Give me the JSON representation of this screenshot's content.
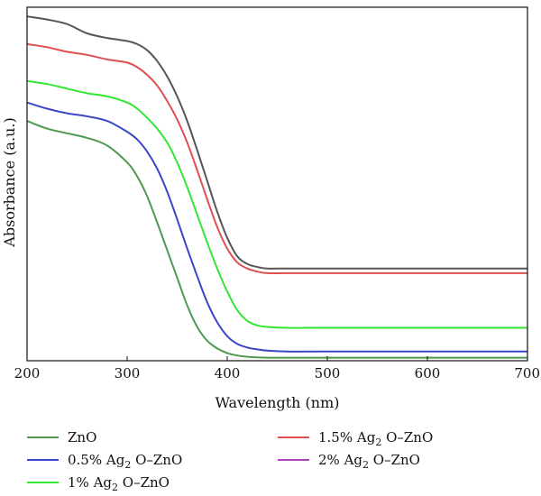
{
  "chart_data": {
    "type": "line",
    "xlabel": "Wavelength (nm)",
    "ylabel": "Absorbance (a.u.)",
    "xlim": [
      200,
      700
    ],
    "xticks": [
      "200",
      "300",
      "400",
      "500",
      "600",
      "700"
    ],
    "yticks": [],
    "grid": false,
    "legend_position": "bottom",
    "x": [
      200,
      220,
      240,
      260,
      280,
      300,
      310,
      320,
      330,
      340,
      350,
      360,
      370,
      380,
      390,
      400,
      410,
      420,
      430,
      440,
      460,
      500,
      600,
      700
    ],
    "series": [
      {
        "name": "ZnO",
        "legend_parts": [
          "ZnO"
        ],
        "color": "#4e9a4e",
        "values": [
          0.77,
          0.745,
          0.73,
          0.715,
          0.69,
          0.635,
          0.59,
          0.525,
          0.44,
          0.35,
          0.26,
          0.17,
          0.1,
          0.055,
          0.03,
          0.015,
          0.007,
          0.003,
          0.001,
          0,
          0,
          0,
          0,
          0
        ]
      },
      {
        "name": "0.5% Ag2 O-ZnO",
        "legend_parts": [
          "0.5% Ag",
          "2",
          " O–ZnO"
        ],
        "color": "#3b46c8",
        "values": [
          0.83,
          0.81,
          0.795,
          0.785,
          0.77,
          0.735,
          0.71,
          0.67,
          0.615,
          0.54,
          0.45,
          0.355,
          0.265,
          0.18,
          0.115,
          0.07,
          0.045,
          0.033,
          0.027,
          0.023,
          0.02,
          0.02,
          0.02,
          0.02
        ]
      },
      {
        "name": "1% Ag2 O-ZnO",
        "legend_parts": [
          "1% Ag",
          "2",
          " O–ZnO"
        ],
        "color": "#33e633",
        "values": [
          0.9,
          0.89,
          0.875,
          0.86,
          0.85,
          0.83,
          0.81,
          0.78,
          0.745,
          0.7,
          0.635,
          0.555,
          0.465,
          0.375,
          0.29,
          0.215,
          0.155,
          0.12,
          0.105,
          0.1,
          0.097,
          0.097,
          0.097,
          0.097
        ]
      },
      {
        "name": "1.5% Ag2 O-ZnO",
        "legend_parts": [
          "1.5% Ag",
          "2",
          " O–ZnO"
        ],
        "color": "#e05050",
        "values": [
          1.02,
          1.01,
          0.995,
          0.985,
          0.97,
          0.96,
          0.945,
          0.92,
          0.885,
          0.835,
          0.775,
          0.7,
          0.61,
          0.515,
          0.425,
          0.355,
          0.31,
          0.29,
          0.28,
          0.275,
          0.275,
          0.275,
          0.275,
          0.275
        ]
      },
      {
        "name": "2% Ag2 O-ZnO",
        "legend_parts": [
          "2% Ag",
          "2",
          " O–ZnO"
        ],
        "color": "#b040c0",
        "line_color": "#555555",
        "values": [
          1.11,
          1.1,
          1.085,
          1.055,
          1.04,
          1.03,
          1.02,
          1.0,
          0.965,
          0.915,
          0.85,
          0.77,
          0.675,
          0.575,
          0.475,
          0.39,
          0.33,
          0.305,
          0.295,
          0.29,
          0.29,
          0.29,
          0.29,
          0.29
        ]
      }
    ]
  }
}
